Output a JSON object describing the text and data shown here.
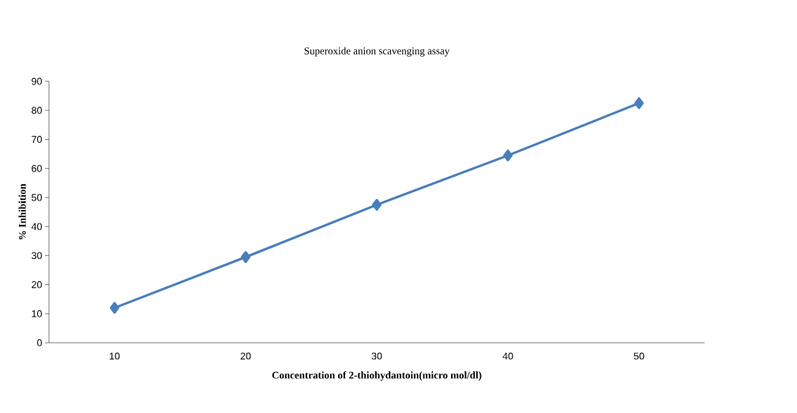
{
  "chart_data": {
    "type": "line",
    "title": "Superoxide anion scavenging assay",
    "xlabel": "Concentration of 2-thiohydantoin(micro mol/dl)",
    "ylabel": "% Inhibition",
    "categories": [
      "10",
      "20",
      "30",
      "40",
      "50"
    ],
    "series": [
      {
        "color": "#4a7ebb",
        "values": [
          12,
          29.5,
          47.5,
          64.5,
          82.5
        ]
      }
    ],
    "ylim": [
      0,
      90
    ],
    "yticks": [
      0,
      10,
      20,
      30,
      40,
      50,
      60,
      70,
      80,
      90
    ],
    "marker": "diamond",
    "line_style": "solid"
  }
}
